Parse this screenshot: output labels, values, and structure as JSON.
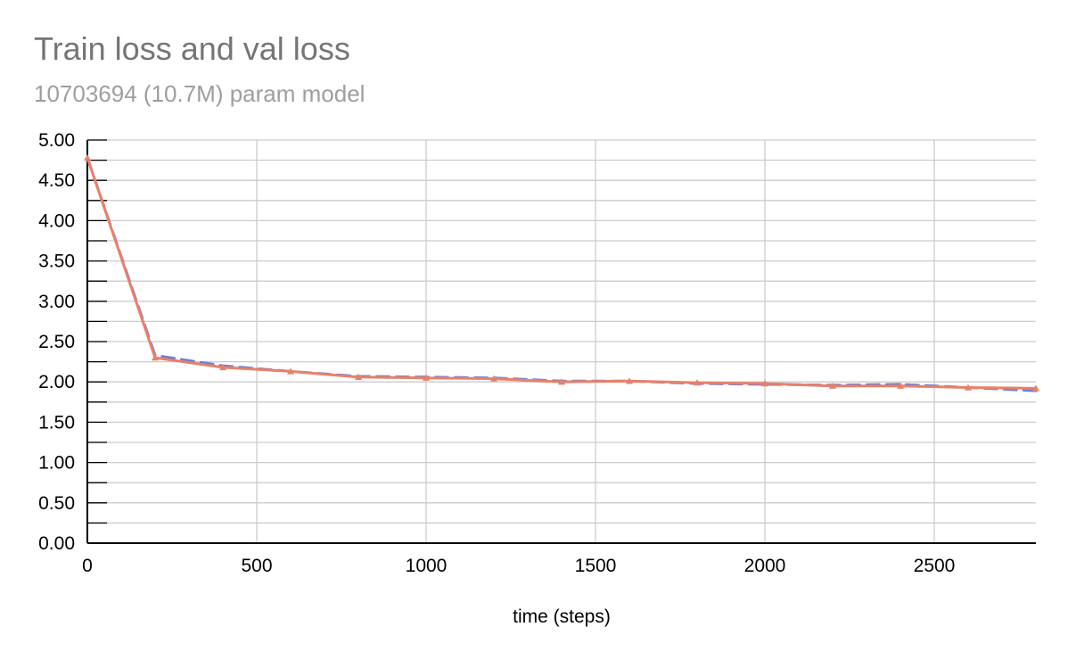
{
  "title": "Train loss and val loss",
  "subtitle": "10703694 (10.7M) param model",
  "chart_data": {
    "type": "line",
    "title": "Train loss and val loss",
    "subtitle": "10703694 (10.7M) param model",
    "xlabel": "time (steps)",
    "ylabel": "",
    "xlim": [
      0,
      2800
    ],
    "ylim": [
      0,
      5
    ],
    "x_ticks": [
      "0",
      "500",
      "1000",
      "1500",
      "2000",
      "2500"
    ],
    "y_ticks": [
      "0.00",
      "0.50",
      "1.00",
      "1.50",
      "2.00",
      "2.50",
      "3.00",
      "3.50",
      "4.00",
      "4.50",
      "5.00"
    ],
    "grid": true,
    "legend": "none",
    "x": [
      0,
      200,
      400,
      600,
      800,
      1000,
      1200,
      1400,
      1600,
      1800,
      2000,
      2200,
      2400,
      2600,
      2800
    ],
    "series": [
      {
        "color": "#6b7fd7",
        "style": "dashed",
        "values": [
          4.78,
          2.33,
          2.2,
          2.13,
          2.07,
          2.06,
          2.05,
          2.01,
          2.01,
          1.98,
          1.97,
          1.96,
          1.97,
          1.93,
          1.89
        ]
      },
      {
        "color": "#e8806a",
        "style": "solid",
        "marker": "triangle",
        "values": [
          4.78,
          2.3,
          2.18,
          2.13,
          2.06,
          2.05,
          2.04,
          2.0,
          2.01,
          1.99,
          1.98,
          1.95,
          1.95,
          1.93,
          1.92
        ]
      }
    ]
  }
}
